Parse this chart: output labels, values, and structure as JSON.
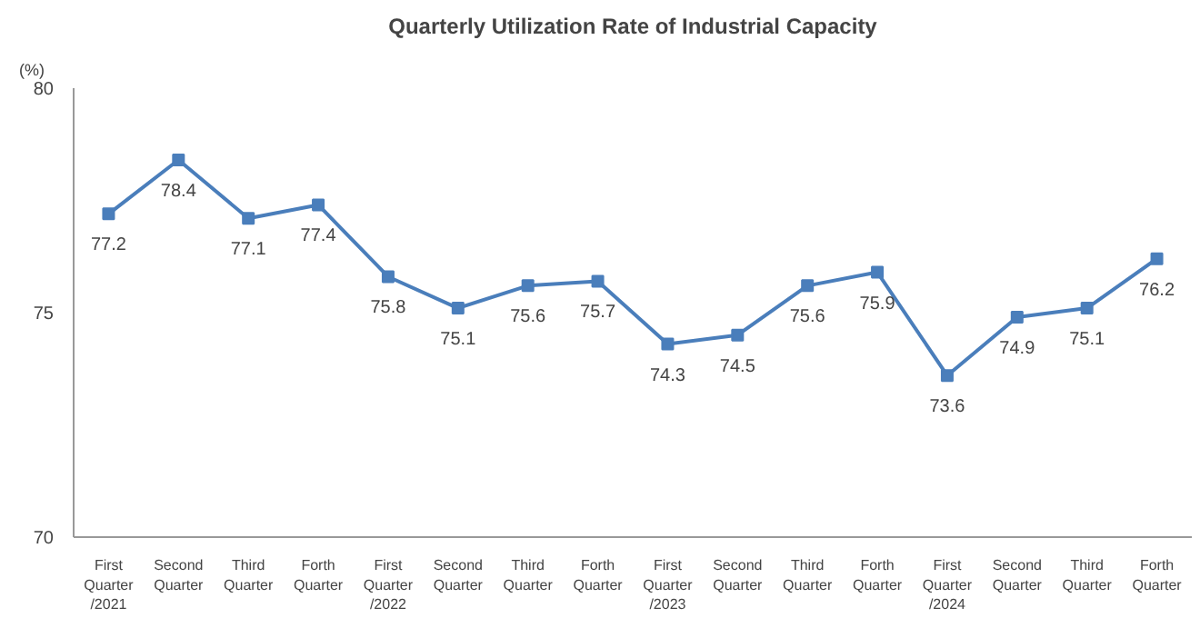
{
  "chart_data": {
    "type": "line",
    "title": "Quarterly Utilization Rate of Industrial Capacity",
    "ylabel": "(%)",
    "categories": [
      "First\nQuarter\n/2021",
      "Second\nQuarter",
      "Third\nQuarter",
      "Forth\nQuarter",
      "First\nQuarter\n/2022",
      "Second\nQuarter",
      "Third\nQuarter",
      "Forth\nQuarter",
      "First\nQuarter\n/2023",
      "Second\nQuarter",
      "Third\nQuarter",
      "Forth\nQuarter",
      "First\nQuarter\n/2024",
      "Second\nQuarter",
      "Third\nQuarter",
      "Forth\nQuarter"
    ],
    "series": [
      {
        "color": "#4a7ebb",
        "values": [
          77.2,
          78.4,
          77.1,
          77.4,
          75.8,
          75.1,
          75.6,
          75.7,
          74.3,
          74.5,
          75.6,
          75.9,
          73.6,
          74.9,
          75.1,
          76.2
        ]
      }
    ],
    "ylim": [
      70,
      80
    ],
    "yticks": [
      70,
      75,
      80
    ],
    "grid": false,
    "marker": "square",
    "line_style": "solid",
    "data_labels": true
  }
}
